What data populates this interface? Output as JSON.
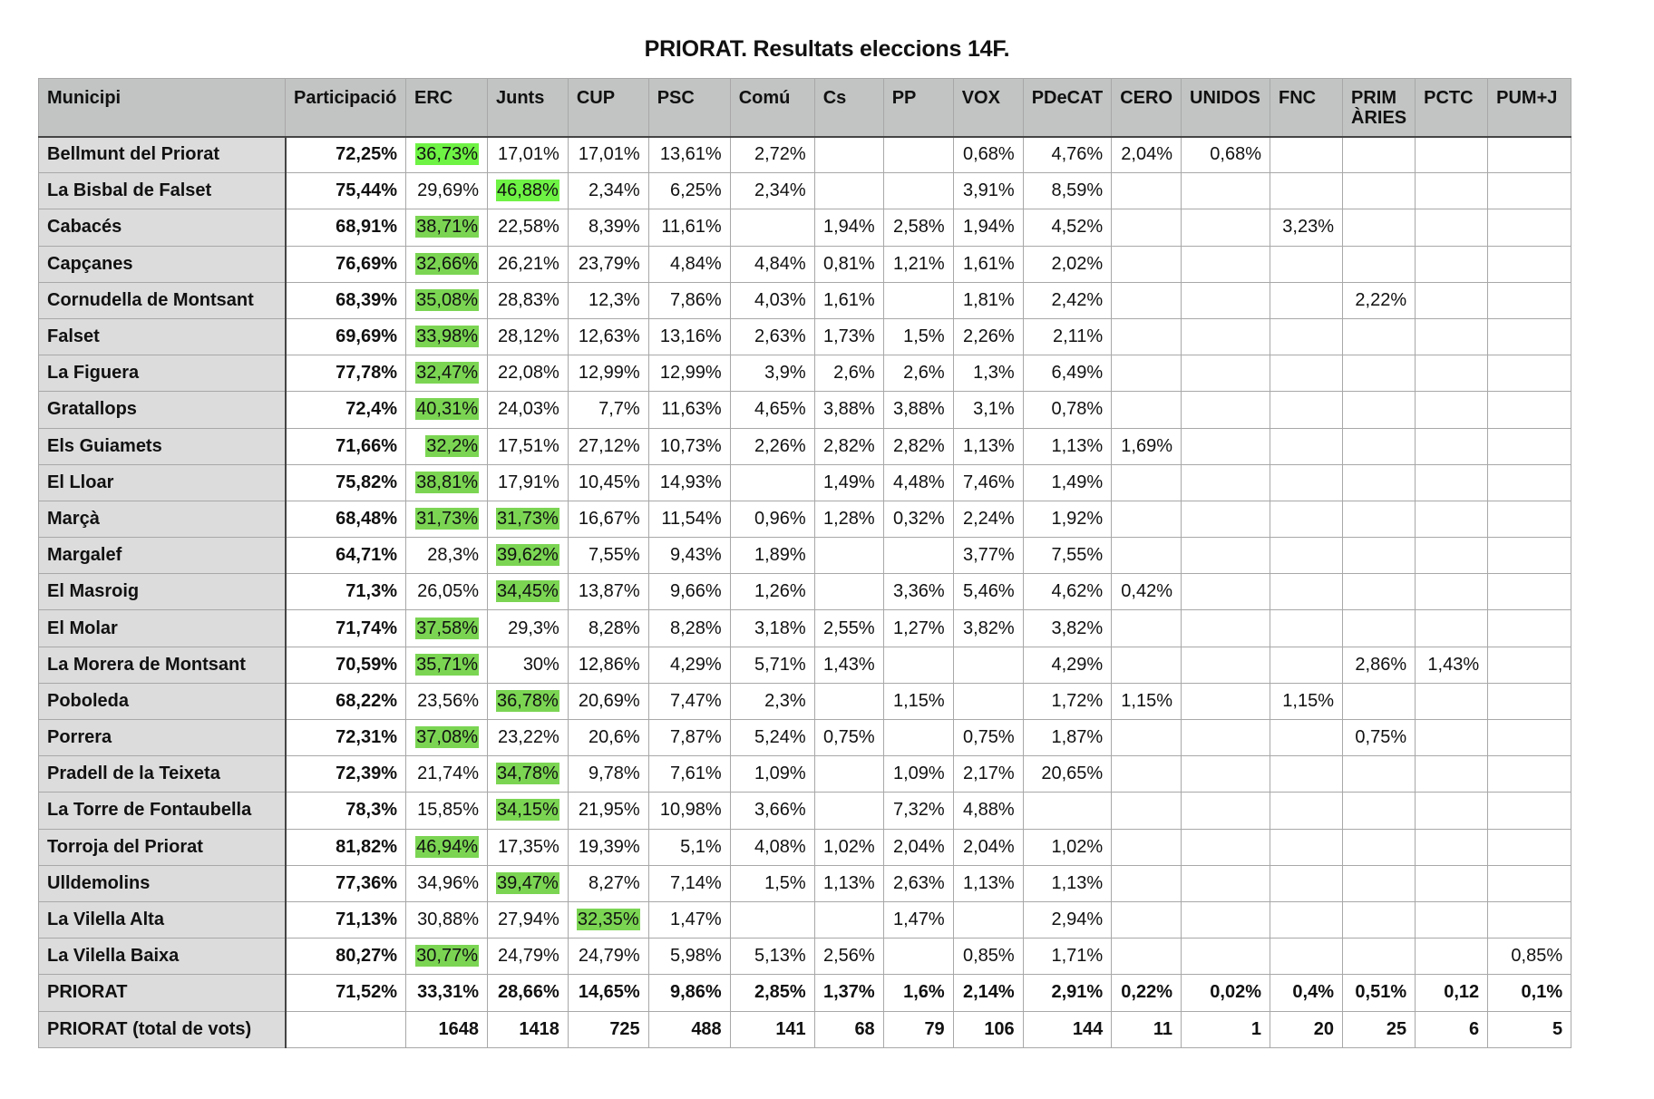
{
  "title": "PRIORAT. Resultats eleccions 14F.",
  "colors": {
    "header_bg": "#c1c4c3",
    "first_col_bg": "#dcdcdc",
    "highlight_bright": "#6ef244",
    "highlight": "#7bd553",
    "grid": "#a8a8a8"
  },
  "columns": [
    "Municipi",
    "Participació",
    "ERC",
    "Junts",
    "CUP",
    "PSC",
    "Comú",
    "Cs",
    "PP",
    "VOX",
    "PDeCAT",
    "CERO",
    "UNIDOS",
    "FNC",
    "PRIM ÀRIES",
    "PCTC",
    "PUM+J"
  ],
  "rows": [
    {
      "municipi": "Bellmunt del Priorat",
      "cells": [
        "72,25%",
        "36,73%",
        "17,01%",
        "17,01%",
        "13,61%",
        "2,72%",
        "",
        "",
        "0,68%",
        "4,76%",
        "2,04%",
        "0,68%",
        "",
        "",
        "",
        ""
      ],
      "highlight": {
        "col": 1,
        "style": "bright"
      }
    },
    {
      "municipi": "La Bisbal de Falset",
      "cells": [
        "75,44%",
        "29,69%",
        "46,88%",
        "2,34%",
        "6,25%",
        "2,34%",
        "",
        "",
        "3,91%",
        "8,59%",
        "",
        "",
        "",
        "",
        "",
        ""
      ],
      "highlight": {
        "col": 2,
        "style": "bright"
      }
    },
    {
      "municipi": "Cabacés",
      "cells": [
        "68,91%",
        "38,71%",
        "22,58%",
        "8,39%",
        "11,61%",
        "",
        "1,94%",
        "2,58%",
        "1,94%",
        "4,52%",
        "",
        "",
        "3,23%",
        "",
        "",
        ""
      ],
      "highlight": {
        "col": 1,
        "style": "muted"
      }
    },
    {
      "municipi": "Capçanes",
      "cells": [
        "76,69%",
        "32,66%",
        "26,21%",
        "23,79%",
        "4,84%",
        "4,84%",
        "0,81%",
        "1,21%",
        "1,61%",
        "2,02%",
        "",
        "",
        "",
        "",
        "",
        ""
      ],
      "highlight": {
        "col": 1,
        "style": "muted"
      }
    },
    {
      "municipi": "Cornudella de Montsant",
      "cells": [
        "68,39%",
        "35,08%",
        "28,83%",
        "12,3%",
        "7,86%",
        "4,03%",
        "1,61%",
        "",
        "1,81%",
        "2,42%",
        "",
        "",
        "",
        "2,22%",
        "",
        ""
      ],
      "highlight": {
        "col": 1,
        "style": "muted"
      }
    },
    {
      "municipi": "Falset",
      "cells": [
        "69,69%",
        "33,98%",
        "28,12%",
        "12,63%",
        "13,16%",
        "2,63%",
        "1,73%",
        "1,5%",
        "2,26%",
        "2,11%",
        "",
        "",
        "",
        "",
        "",
        ""
      ],
      "highlight": {
        "col": 1,
        "style": "muted"
      }
    },
    {
      "municipi": "La Figuera",
      "cells": [
        "77,78%",
        "32,47%",
        "22,08%",
        "12,99%",
        "12,99%",
        "3,9%",
        "2,6%",
        "2,6%",
        "1,3%",
        "6,49%",
        "",
        "",
        "",
        "",
        "",
        ""
      ],
      "highlight": {
        "col": 1,
        "style": "muted"
      }
    },
    {
      "municipi": "Gratallops",
      "cells": [
        "72,4%",
        "40,31%",
        "24,03%",
        "7,7%",
        "11,63%",
        "4,65%",
        "3,88%",
        "3,88%",
        "3,1%",
        "0,78%",
        "",
        "",
        "",
        "",
        "",
        ""
      ],
      "highlight": {
        "col": 1,
        "style": "muted"
      }
    },
    {
      "municipi": "Els Guiamets",
      "cells": [
        "71,66%",
        "32,2%",
        "17,51%",
        "27,12%",
        "10,73%",
        "2,26%",
        "2,82%",
        "2,82%",
        "1,13%",
        "1,13%",
        "1,69%",
        "",
        "",
        "",
        "",
        ""
      ],
      "highlight": {
        "col": 1,
        "style": "muted"
      }
    },
    {
      "municipi": "El Lloar",
      "cells": [
        "75,82%",
        "38,81%",
        "17,91%",
        "10,45%",
        "14,93%",
        "",
        "1,49%",
        "4,48%",
        "7,46%",
        "1,49%",
        "",
        "",
        "",
        "",
        "",
        ""
      ],
      "highlight": {
        "col": 1,
        "style": "muted"
      }
    },
    {
      "municipi": "Marçà",
      "cells": [
        "68,48%",
        "31,73%",
        "31,73%",
        "16,67%",
        "11,54%",
        "0,96%",
        "1,28%",
        "0,32%",
        "2,24%",
        "1,92%",
        "",
        "",
        "",
        "",
        "",
        ""
      ],
      "highlight": {
        "cols": [
          1,
          2
        ],
        "style": "muted"
      }
    },
    {
      "municipi": "Margalef",
      "cells": [
        "64,71%",
        "28,3%",
        "39,62%",
        "7,55%",
        "9,43%",
        "1,89%",
        "",
        "",
        "3,77%",
        "7,55%",
        "",
        "",
        "",
        "",
        "",
        ""
      ],
      "highlight": {
        "col": 2,
        "style": "muted"
      }
    },
    {
      "municipi": "El Masroig",
      "cells": [
        "71,3%",
        "26,05%",
        "34,45%",
        "13,87%",
        "9,66%",
        "1,26%",
        "",
        "3,36%",
        "5,46%",
        "4,62%",
        "0,42%",
        "",
        "",
        "",
        "",
        ""
      ],
      "highlight": {
        "col": 2,
        "style": "muted"
      }
    },
    {
      "municipi": "El Molar",
      "cells": [
        "71,74%",
        "37,58%",
        "29,3%",
        "8,28%",
        "8,28%",
        "3,18%",
        "2,55%",
        "1,27%",
        "3,82%",
        "3,82%",
        "",
        "",
        "",
        "",
        "",
        ""
      ],
      "highlight": {
        "col": 1,
        "style": "muted"
      }
    },
    {
      "municipi": "La Morera de Montsant",
      "cells": [
        "70,59%",
        "35,71%",
        "30%",
        "12,86%",
        "4,29%",
        "5,71%",
        "1,43%",
        "",
        "",
        "4,29%",
        "",
        "",
        "",
        "2,86%",
        "1,43%",
        ""
      ],
      "highlight": {
        "col": 1,
        "style": "muted"
      }
    },
    {
      "municipi": "Poboleda",
      "cells": [
        "68,22%",
        "23,56%",
        "36,78%",
        "20,69%",
        "7,47%",
        "2,3%",
        "",
        "1,15%",
        "",
        "1,72%",
        "1,15%",
        "",
        "1,15%",
        "",
        "",
        ""
      ],
      "highlight": {
        "col": 2,
        "style": "muted"
      }
    },
    {
      "municipi": "Porrera",
      "cells": [
        "72,31%",
        "37,08%",
        "23,22%",
        "20,6%",
        "7,87%",
        "5,24%",
        "0,75%",
        "",
        "0,75%",
        "1,87%",
        "",
        "",
        "",
        "0,75%",
        "",
        ""
      ],
      "highlight": {
        "col": 1,
        "style": "muted"
      }
    },
    {
      "municipi": "Pradell de la Teixeta",
      "cells": [
        "72,39%",
        "21,74%",
        "34,78%",
        "9,78%",
        "7,61%",
        "1,09%",
        "",
        "1,09%",
        "2,17%",
        "20,65%",
        "",
        "",
        "",
        "",
        "",
        ""
      ],
      "highlight": {
        "col": 2,
        "style": "muted"
      }
    },
    {
      "municipi": "La Torre de Fontaubella",
      "cells": [
        "78,3%",
        "15,85%",
        "34,15%",
        "21,95%",
        "10,98%",
        "3,66%",
        "",
        "7,32%",
        "4,88%",
        "",
        "",
        "",
        "",
        "",
        "",
        ""
      ],
      "highlight": {
        "col": 2,
        "style": "muted"
      }
    },
    {
      "municipi": "Torroja del Priorat",
      "cells": [
        "81,82%",
        "46,94%",
        "17,35%",
        "19,39%",
        "5,1%",
        "4,08%",
        "1,02%",
        "2,04%",
        "2,04%",
        "1,02%",
        "",
        "",
        "",
        "",
        "",
        ""
      ],
      "highlight": {
        "col": 1,
        "style": "muted"
      }
    },
    {
      "municipi": "Ulldemolins",
      "cells": [
        "77,36%",
        "34,96%",
        "39,47%",
        "8,27%",
        "7,14%",
        "1,5%",
        "1,13%",
        "2,63%",
        "1,13%",
        "1,13%",
        "",
        "",
        "",
        "",
        "",
        ""
      ],
      "highlight": {
        "col": 2,
        "style": "muted"
      }
    },
    {
      "municipi": "La Vilella Alta",
      "cells": [
        "71,13%",
        "30,88%",
        "27,94%",
        "32,35%",
        "1,47%",
        "",
        "",
        "1,47%",
        "",
        "2,94%",
        "",
        "",
        "",
        "",
        "",
        ""
      ],
      "highlight": {
        "col": 3,
        "style": "muted"
      }
    },
    {
      "municipi": "La Vilella Baixa",
      "cells": [
        "80,27%",
        "30,77%",
        "24,79%",
        "24,79%",
        "5,98%",
        "5,13%",
        "2,56%",
        "",
        "0,85%",
        "1,71%",
        "",
        "",
        "",
        "",
        "",
        "0,85%"
      ],
      "highlight": {
        "col": 1,
        "style": "muted"
      }
    }
  ],
  "totals": [
    {
      "municipi": "PRIORAT",
      "cells": [
        "71,52%",
        "33,31%",
        "28,66%",
        "14,65%",
        "9,86%",
        "2,85%",
        "1,37%",
        "1,6%",
        "2,14%",
        "2,91%",
        "0,22%",
        "0,02%",
        "0,4%",
        "0,51%",
        "0,12",
        "0,1%"
      ]
    },
    {
      "municipi": "PRIORAT (total de vots)",
      "cells": [
        "",
        "1648",
        "1418",
        "725",
        "488",
        "141",
        "68",
        "79",
        "106",
        "144",
        "11",
        "1",
        "20",
        "25",
        "6",
        "5"
      ]
    }
  ]
}
